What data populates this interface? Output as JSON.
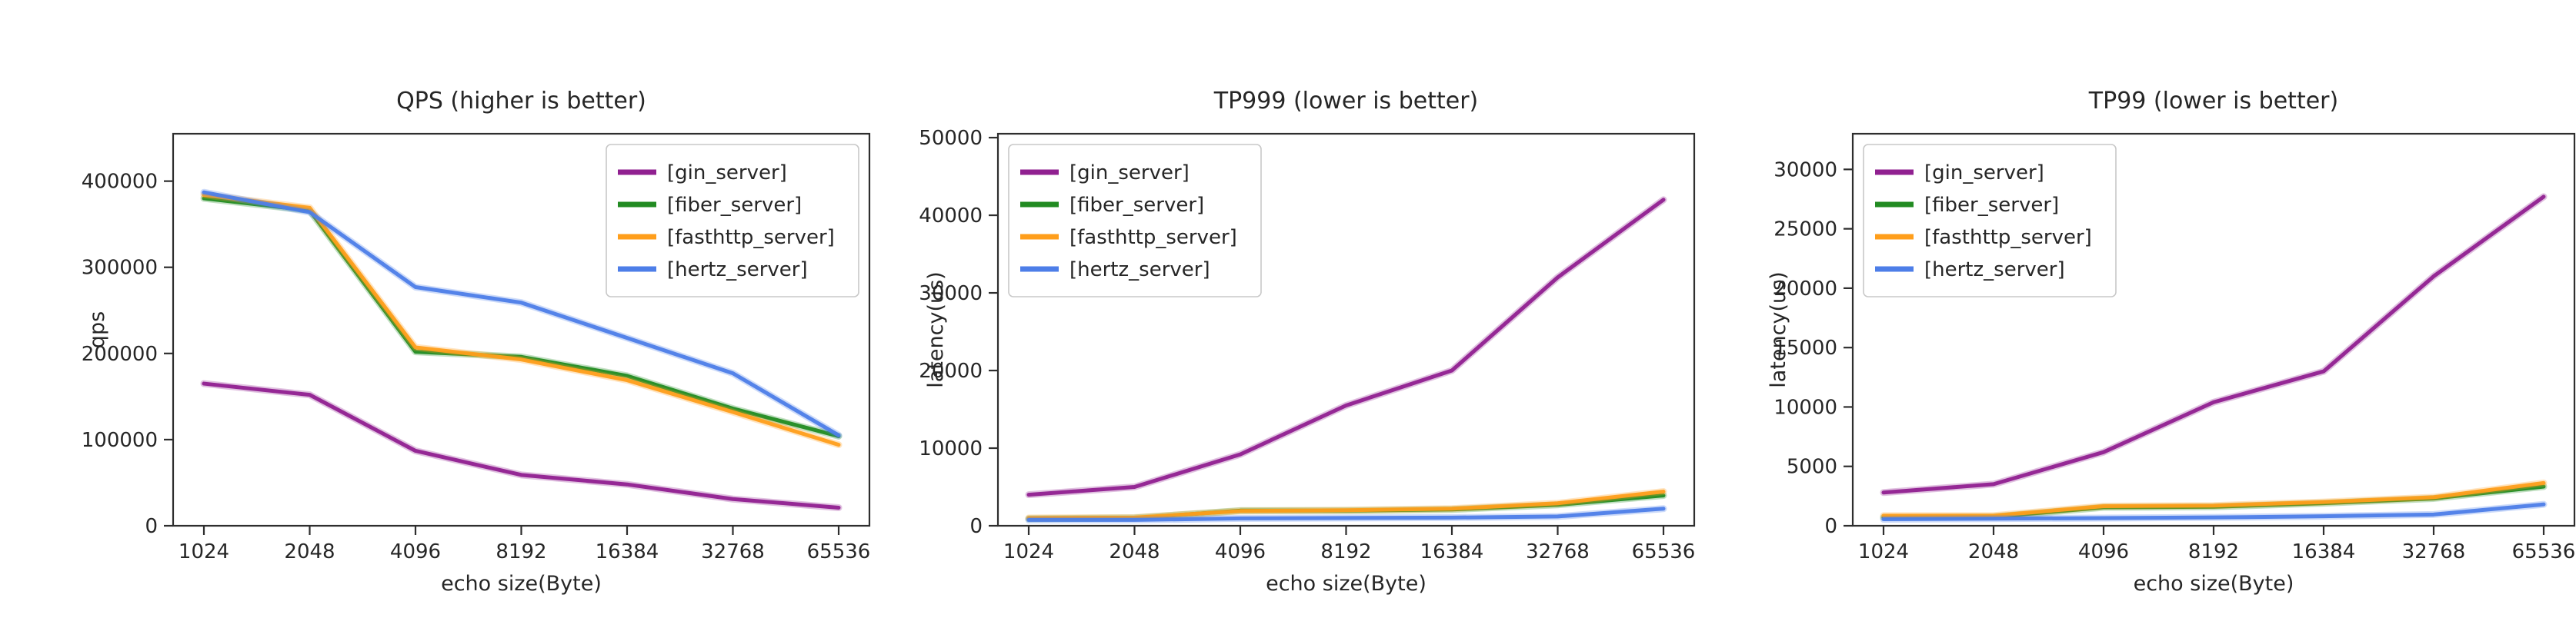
{
  "figure": {
    "background": "#ffffff",
    "axis_color": "#2e2e2e",
    "text_color": "#262626",
    "legend_border_color": "#c8c8c8"
  },
  "chart_data": [
    {
      "type": "line",
      "title": "QPS (higher is better)",
      "xlabel": "echo size(Byte)",
      "ylabel": "qps",
      "categories": [
        1024,
        2048,
        4096,
        8192,
        16384,
        32768,
        65536
      ],
      "yticks": [
        0,
        100000,
        200000,
        300000,
        400000
      ],
      "ylim": [
        0,
        455000
      ],
      "grid": false,
      "legend_position": "top-right",
      "series": [
        {
          "name": "gin_server",
          "label": "[gin_server]",
          "color": "#902090",
          "values": [
            165000,
            152000,
            87000,
            59000,
            48000,
            31000,
            21000
          ]
        },
        {
          "name": "fiber_server",
          "label": "[fiber_server]",
          "color": "#228b22",
          "values": [
            380000,
            366000,
            202000,
            196000,
            174000,
            136000,
            104000
          ]
        },
        {
          "name": "fasthttp_server",
          "label": "[fasthttp_server]",
          "color": "#ff9e1b",
          "values": [
            384000,
            369000,
            207000,
            193000,
            169000,
            132000,
            94000
          ]
        },
        {
          "name": "hertz_server",
          "label": "[hertz_server]",
          "color": "#4d7ee8",
          "values": [
            387000,
            364000,
            277000,
            259000,
            218000,
            177000,
            105000
          ]
        }
      ]
    },
    {
      "type": "line",
      "title": "TP999 (lower is better)",
      "xlabel": "echo size(Byte)",
      "ylabel": "latency(us)",
      "categories": [
        1024,
        2048,
        4096,
        8192,
        16384,
        32768,
        65536
      ],
      "yticks": [
        0,
        10000,
        20000,
        30000,
        40000,
        50000
      ],
      "ylim": [
        0,
        50500
      ],
      "grid": false,
      "legend_position": "top-left",
      "series": [
        {
          "name": "gin_server",
          "label": "[gin_server]",
          "color": "#902090",
          "values": [
            4000,
            5000,
            9200,
            15500,
            20000,
            32000,
            42000
          ]
        },
        {
          "name": "fiber_server",
          "label": "[fiber_server]",
          "color": "#228b22",
          "values": [
            900,
            1000,
            1950,
            1950,
            2100,
            2700,
            3900
          ]
        },
        {
          "name": "fasthttp_server",
          "label": "[fasthttp_server]",
          "color": "#ff9e1b",
          "values": [
            1000,
            1050,
            1900,
            2000,
            2200,
            2900,
            4400
          ]
        },
        {
          "name": "hertz_server",
          "label": "[hertz_server]",
          "color": "#4d7ee8",
          "values": [
            750,
            750,
            950,
            1000,
            1050,
            1200,
            2200
          ]
        }
      ]
    },
    {
      "type": "line",
      "title": "TP99 (lower is better)",
      "xlabel": "echo size(Byte)",
      "ylabel": "latency(us)",
      "categories": [
        1024,
        2048,
        4096,
        8192,
        16384,
        32768,
        65536
      ],
      "yticks": [
        0,
        5000,
        10000,
        15000,
        20000,
        25000,
        30000
      ],
      "ylim": [
        0,
        33000
      ],
      "grid": false,
      "legend_position": "top-left",
      "series": [
        {
          "name": "gin_server",
          "label": "[gin_server]",
          "color": "#902090",
          "values": [
            2800,
            3500,
            6200,
            10400,
            13000,
            21000,
            27700
          ]
        },
        {
          "name": "fiber_server",
          "label": "[fiber_server]",
          "color": "#228b22",
          "values": [
            700,
            750,
            1550,
            1600,
            1900,
            2300,
            3300
          ]
        },
        {
          "name": "fasthttp_server",
          "label": "[fasthttp_server]",
          "color": "#ff9e1b",
          "values": [
            850,
            850,
            1650,
            1700,
            2000,
            2400,
            3600
          ]
        },
        {
          "name": "hertz_server",
          "label": "[hertz_server]",
          "color": "#4d7ee8",
          "values": [
            550,
            600,
            650,
            700,
            800,
            950,
            1800
          ]
        }
      ]
    }
  ]
}
